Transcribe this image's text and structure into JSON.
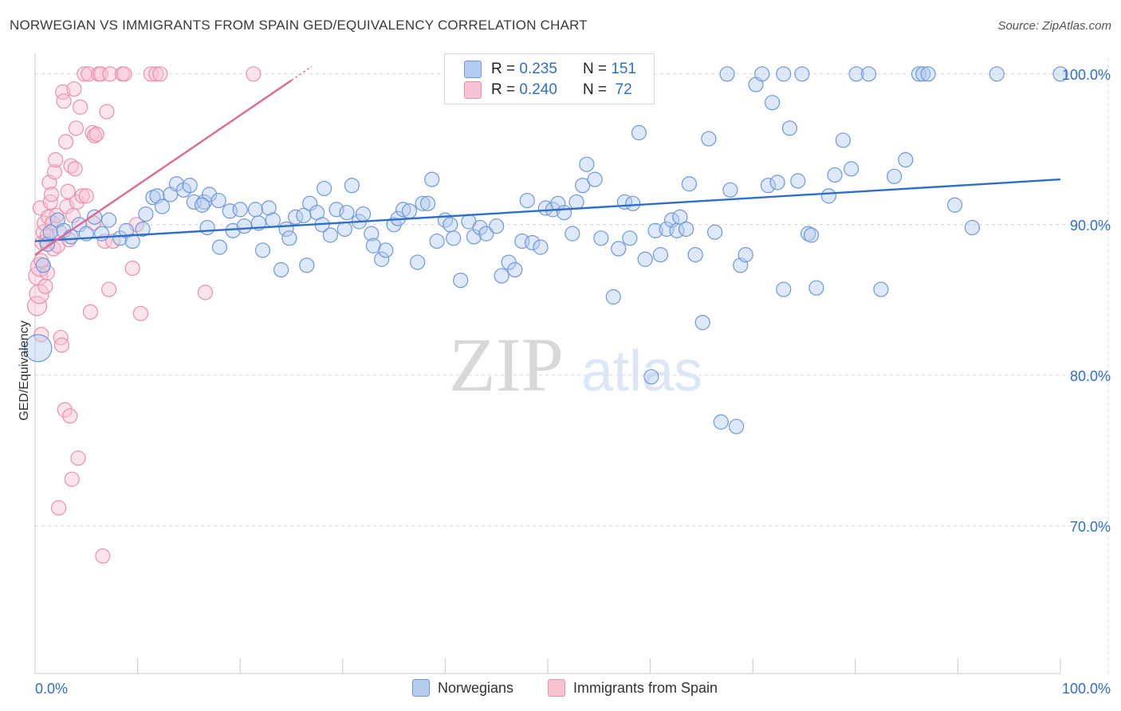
{
  "title": "NORWEGIAN VS IMMIGRANTS FROM SPAIN GED/EQUIVALENCY CORRELATION CHART",
  "source": "Source: ZipAtlas.com",
  "watermark": {
    "zip": "ZIP",
    "atlas": "atlas"
  },
  "legend": {
    "r_label": "R =",
    "n_label": "N =",
    "rows": [
      {
        "r": "0.235",
        "n": "151"
      },
      {
        "r": "0.240",
        "n": " 72"
      }
    ]
  },
  "colors": {
    "blue_fill": "#b4ccf0",
    "blue_stroke": "#6f98d8",
    "blue_line": "#2f6ec9",
    "pink_fill": "#f8c4d4",
    "pink_stroke": "#e890ac",
    "pink_line": "#e06890",
    "axis_text": "#2f6ec9",
    "grid": "#d9d9d9"
  },
  "chart_data": {
    "type": "scatter",
    "title": "NORWEGIAN VS IMMIGRANTS FROM SPAIN GED/EQUIVALENCY CORRELATION CHART",
    "xlabel": "",
    "ylabel": "GED/Equivalency",
    "xlim": [
      0,
      100
    ],
    "ylim": [
      60.2,
      102.0
    ],
    "x_tick_labels": [
      "0.0%",
      "100.0%"
    ],
    "y_ticks": [
      70,
      80,
      90,
      100
    ],
    "y_tick_labels": [
      "70.0%",
      "80.0%",
      "90.0%",
      "100.0%"
    ],
    "grid": true,
    "legend_position": "bottom",
    "series": [
      {
        "name": "Norwegians",
        "r": 0.235,
        "n": 151,
        "trend": {
          "x": [
            0,
            100
          ],
          "y": [
            88.9,
            93.0
          ]
        },
        "points": [
          [
            0.3,
            81.8
          ],
          [
            0.8,
            87.3
          ],
          [
            1.2,
            88.7
          ],
          [
            1.5,
            89.5
          ],
          [
            2.2,
            90.3
          ],
          [
            2.8,
            89.6
          ],
          [
            3.5,
            89.2
          ],
          [
            4.3,
            90.0
          ],
          [
            5.0,
            89.4
          ],
          [
            5.8,
            90.5
          ],
          [
            6.5,
            89.4
          ],
          [
            7.2,
            90.3
          ],
          [
            8.3,
            89.1
          ],
          [
            8.9,
            89.6
          ],
          [
            9.5,
            88.9
          ],
          [
            10.5,
            89.7
          ],
          [
            10.8,
            90.7
          ],
          [
            11.5,
            91.8
          ],
          [
            11.9,
            91.9
          ],
          [
            12.4,
            91.2
          ],
          [
            13.2,
            92.0
          ],
          [
            13.8,
            92.7
          ],
          [
            14.5,
            92.3
          ],
          [
            15.1,
            92.6
          ],
          [
            15.5,
            91.5
          ],
          [
            16.5,
            91.5
          ],
          [
            17.0,
            92.0
          ],
          [
            16.3,
            91.3
          ],
          [
            17.9,
            91.6
          ],
          [
            16.8,
            89.8
          ],
          [
            18.0,
            88.5
          ],
          [
            19.3,
            89.6
          ],
          [
            19.0,
            90.9
          ],
          [
            20.0,
            91.0
          ],
          [
            20.4,
            89.9
          ],
          [
            21.5,
            91.0
          ],
          [
            21.8,
            90.1
          ],
          [
            22.2,
            88.3
          ],
          [
            22.8,
            91.1
          ],
          [
            23.2,
            90.3
          ],
          [
            24.0,
            87.0
          ],
          [
            24.5,
            89.7
          ],
          [
            24.8,
            89.1
          ],
          [
            25.4,
            90.5
          ],
          [
            26.5,
            87.3
          ],
          [
            26.8,
            91.4
          ],
          [
            27.5,
            90.8
          ],
          [
            26.2,
            90.6
          ],
          [
            28.0,
            90.0
          ],
          [
            28.2,
            92.4
          ],
          [
            28.8,
            89.3
          ],
          [
            29.4,
            91.0
          ],
          [
            30.2,
            89.7
          ],
          [
            30.4,
            90.8
          ],
          [
            30.9,
            92.6
          ],
          [
            31.6,
            90.2
          ],
          [
            32.0,
            90.7
          ],
          [
            32.8,
            89.4
          ],
          [
            33.0,
            88.6
          ],
          [
            33.8,
            87.7
          ],
          [
            34.2,
            88.3
          ],
          [
            35.0,
            90.0
          ],
          [
            35.4,
            90.4
          ],
          [
            35.9,
            91.0
          ],
          [
            36.5,
            90.9
          ],
          [
            37.3,
            87.5
          ],
          [
            37.8,
            91.4
          ],
          [
            38.3,
            91.4
          ],
          [
            39.2,
            88.9
          ],
          [
            38.7,
            93.0
          ],
          [
            40.0,
            90.3
          ],
          [
            40.5,
            90.0
          ],
          [
            40.8,
            89.1
          ],
          [
            41.5,
            86.3
          ],
          [
            42.3,
            90.2
          ],
          [
            42.8,
            89.2
          ],
          [
            43.4,
            89.8
          ],
          [
            44.0,
            89.4
          ],
          [
            45.0,
            89.9
          ],
          [
            45.5,
            86.6
          ],
          [
            46.2,
            87.5
          ],
          [
            46.8,
            87.0
          ],
          [
            47.5,
            88.9
          ],
          [
            48.0,
            91.6
          ],
          [
            48.5,
            88.8
          ],
          [
            49.3,
            88.5
          ],
          [
            49.8,
            91.1
          ],
          [
            50.5,
            91.0
          ],
          [
            51.0,
            91.4
          ],
          [
            51.6,
            90.8
          ],
          [
            52.4,
            89.4
          ],
          [
            52.8,
            91.5
          ],
          [
            53.4,
            92.6
          ],
          [
            53.8,
            94.0
          ],
          [
            54.6,
            93.0
          ],
          [
            55.2,
            89.1
          ],
          [
            56.4,
            85.2
          ],
          [
            56.9,
            88.4
          ],
          [
            57.5,
            91.5
          ],
          [
            58.0,
            89.1
          ],
          [
            58.3,
            91.4
          ],
          [
            58.9,
            96.1
          ],
          [
            59.5,
            87.7
          ],
          [
            60.1,
            79.9
          ],
          [
            60.5,
            89.6
          ],
          [
            61.0,
            88.0
          ],
          [
            61.6,
            89.7
          ],
          [
            62.1,
            90.3
          ],
          [
            62.6,
            89.6
          ],
          [
            62.9,
            90.5
          ],
          [
            63.5,
            89.7
          ],
          [
            63.8,
            92.7
          ],
          [
            64.4,
            88.0
          ],
          [
            65.1,
            83.5
          ],
          [
            65.7,
            95.7
          ],
          [
            66.3,
            89.5
          ],
          [
            66.9,
            76.9
          ],
          [
            67.5,
            100.0
          ],
          [
            67.8,
            92.3
          ],
          [
            68.4,
            76.6
          ],
          [
            68.8,
            87.3
          ],
          [
            69.3,
            88.0
          ],
          [
            70.3,
            99.3
          ],
          [
            70.9,
            100.0
          ],
          [
            71.5,
            92.6
          ],
          [
            71.9,
            98.1
          ],
          [
            72.4,
            92.8
          ],
          [
            73.0,
            85.7
          ],
          [
            73.0,
            100.0
          ],
          [
            73.6,
            96.4
          ],
          [
            74.4,
            92.9
          ],
          [
            74.8,
            100.0
          ],
          [
            75.4,
            89.4
          ],
          [
            75.7,
            89.3
          ],
          [
            76.2,
            85.8
          ],
          [
            77.4,
            91.9
          ],
          [
            78.0,
            93.3
          ],
          [
            78.8,
            95.6
          ],
          [
            79.6,
            93.7
          ],
          [
            80.1,
            100.0
          ],
          [
            81.3,
            100.0
          ],
          [
            82.5,
            85.7
          ],
          [
            83.8,
            93.2
          ],
          [
            84.9,
            94.3
          ],
          [
            86.2,
            100.0
          ],
          [
            86.6,
            100.0
          ],
          [
            87.1,
            100.0
          ],
          [
            89.7,
            91.3
          ],
          [
            91.4,
            89.8
          ],
          [
            93.8,
            100.0
          ],
          [
            100.0,
            100.0
          ]
        ]
      },
      {
        "name": "Immigrants from Spain",
        "r": 0.24,
        "n": 72,
        "trend": {
          "x": [
            0,
            27
          ],
          "y": [
            88.0,
            100.5
          ]
        },
        "points": [
          [
            0.2,
            84.6
          ],
          [
            0.3,
            86.6
          ],
          [
            0.4,
            85.4
          ],
          [
            0.5,
            87.2
          ],
          [
            0.6,
            87.6
          ],
          [
            0.7,
            88.8
          ],
          [
            0.8,
            89.5
          ],
          [
            0.9,
            90.1
          ],
          [
            0.5,
            91.1
          ],
          [
            0.6,
            82.7
          ],
          [
            1.0,
            85.9
          ],
          [
            1.1,
            88.9
          ],
          [
            1.2,
            89.3
          ],
          [
            1.2,
            86.8
          ],
          [
            1.3,
            90.5
          ],
          [
            1.4,
            92.8
          ],
          [
            1.5,
            91.5
          ],
          [
            1.6,
            92.0
          ],
          [
            1.7,
            90.1
          ],
          [
            1.8,
            88.4
          ],
          [
            1.9,
            93.5
          ],
          [
            2.0,
            94.3
          ],
          [
            2.1,
            90.6
          ],
          [
            2.2,
            88.6
          ],
          [
            2.4,
            89.5
          ],
          [
            2.5,
            82.5
          ],
          [
            2.3,
            71.2
          ],
          [
            2.6,
            82.0
          ],
          [
            2.7,
            98.8
          ],
          [
            2.8,
            98.2
          ],
          [
            2.9,
            77.7
          ],
          [
            3.0,
            95.5
          ],
          [
            3.1,
            91.2
          ],
          [
            3.2,
            92.2
          ],
          [
            3.3,
            89.0
          ],
          [
            3.4,
            77.3
          ],
          [
            3.5,
            93.9
          ],
          [
            3.6,
            73.1
          ],
          [
            3.7,
            90.6
          ],
          [
            3.8,
            99.0
          ],
          [
            3.9,
            93.7
          ],
          [
            4.0,
            96.4
          ],
          [
            4.1,
            91.5
          ],
          [
            4.2,
            74.5
          ],
          [
            4.4,
            97.8
          ],
          [
            4.6,
            91.9
          ],
          [
            4.8,
            100.0
          ],
          [
            5.0,
            91.9
          ],
          [
            5.2,
            100.0
          ],
          [
            5.4,
            84.2
          ],
          [
            5.6,
            96.1
          ],
          [
            5.7,
            90.1
          ],
          [
            5.8,
            95.9
          ],
          [
            6.0,
            96.0
          ],
          [
            6.2,
            100.0
          ],
          [
            6.4,
            100.0
          ],
          [
            6.6,
            68.0
          ],
          [
            6.8,
            88.9
          ],
          [
            7.0,
            97.5
          ],
          [
            7.2,
            85.7
          ],
          [
            7.3,
            100.0
          ],
          [
            7.6,
            88.9
          ],
          [
            8.5,
            100.0
          ],
          [
            8.7,
            100.0
          ],
          [
            9.5,
            87.1
          ],
          [
            9.9,
            90.0
          ],
          [
            10.3,
            84.1
          ],
          [
            11.3,
            100.0
          ],
          [
            11.8,
            100.0
          ],
          [
            12.2,
            100.0
          ],
          [
            16.6,
            85.5
          ],
          [
            21.3,
            100.0
          ]
        ]
      }
    ]
  }
}
